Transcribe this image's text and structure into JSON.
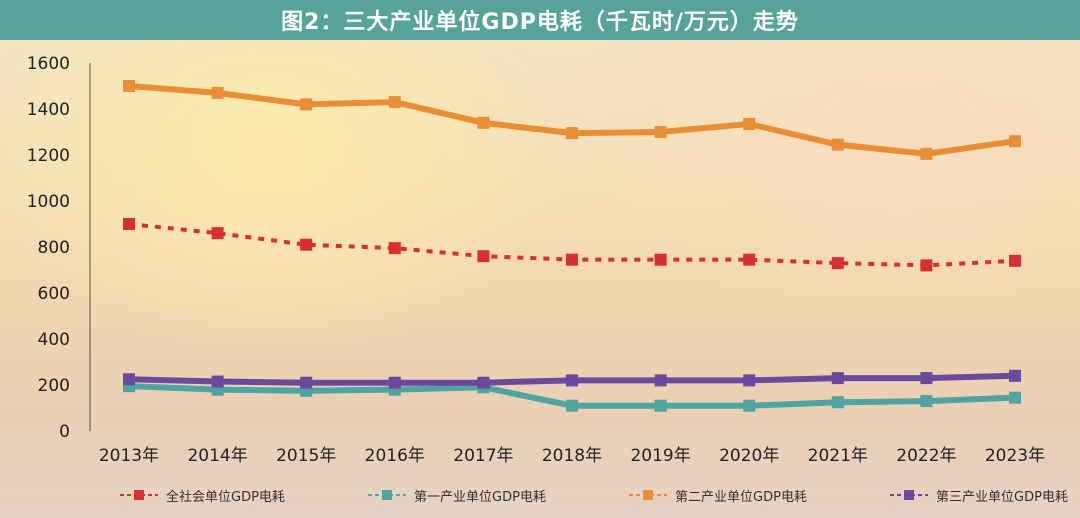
{
  "title": "图2：三大产业单位GDP电耗（千瓦时/万元）走势",
  "chart_data": {
    "type": "line",
    "categories": [
      "2013年",
      "2014年",
      "2015年",
      "2016年",
      "2017年",
      "2018年",
      "2019年",
      "2020年",
      "2021年",
      "2022年",
      "2023年"
    ],
    "ylim": [
      0,
      1600
    ],
    "yticks": [
      0,
      200,
      400,
      600,
      800,
      1000,
      1200,
      1400,
      1600
    ],
    "grid": false,
    "legend_position": "bottom",
    "series": [
      {
        "name": "全社会单位GDP电耗",
        "color": "#d8302e",
        "dashed": true,
        "values": [
          900,
          860,
          810,
          795,
          760,
          745,
          745,
          745,
          730,
          720,
          740
        ]
      },
      {
        "name": "第一产业单位GDP电耗",
        "color": "#4fa3a0",
        "dashed": false,
        "values": [
          195,
          180,
          175,
          180,
          190,
          110,
          110,
          110,
          125,
          130,
          145
        ]
      },
      {
        "name": "第二产业单位GDP电耗",
        "color": "#e98e34",
        "dashed": false,
        "values": [
          1500,
          1470,
          1420,
          1430,
          1340,
          1295,
          1300,
          1335,
          1245,
          1205,
          1260
        ]
      },
      {
        "name": "第三产业单位GDP电耗",
        "color": "#6a4a9c",
        "dashed": false,
        "values": [
          225,
          215,
          210,
          210,
          210,
          220,
          220,
          220,
          230,
          230,
          240
        ]
      }
    ]
  }
}
